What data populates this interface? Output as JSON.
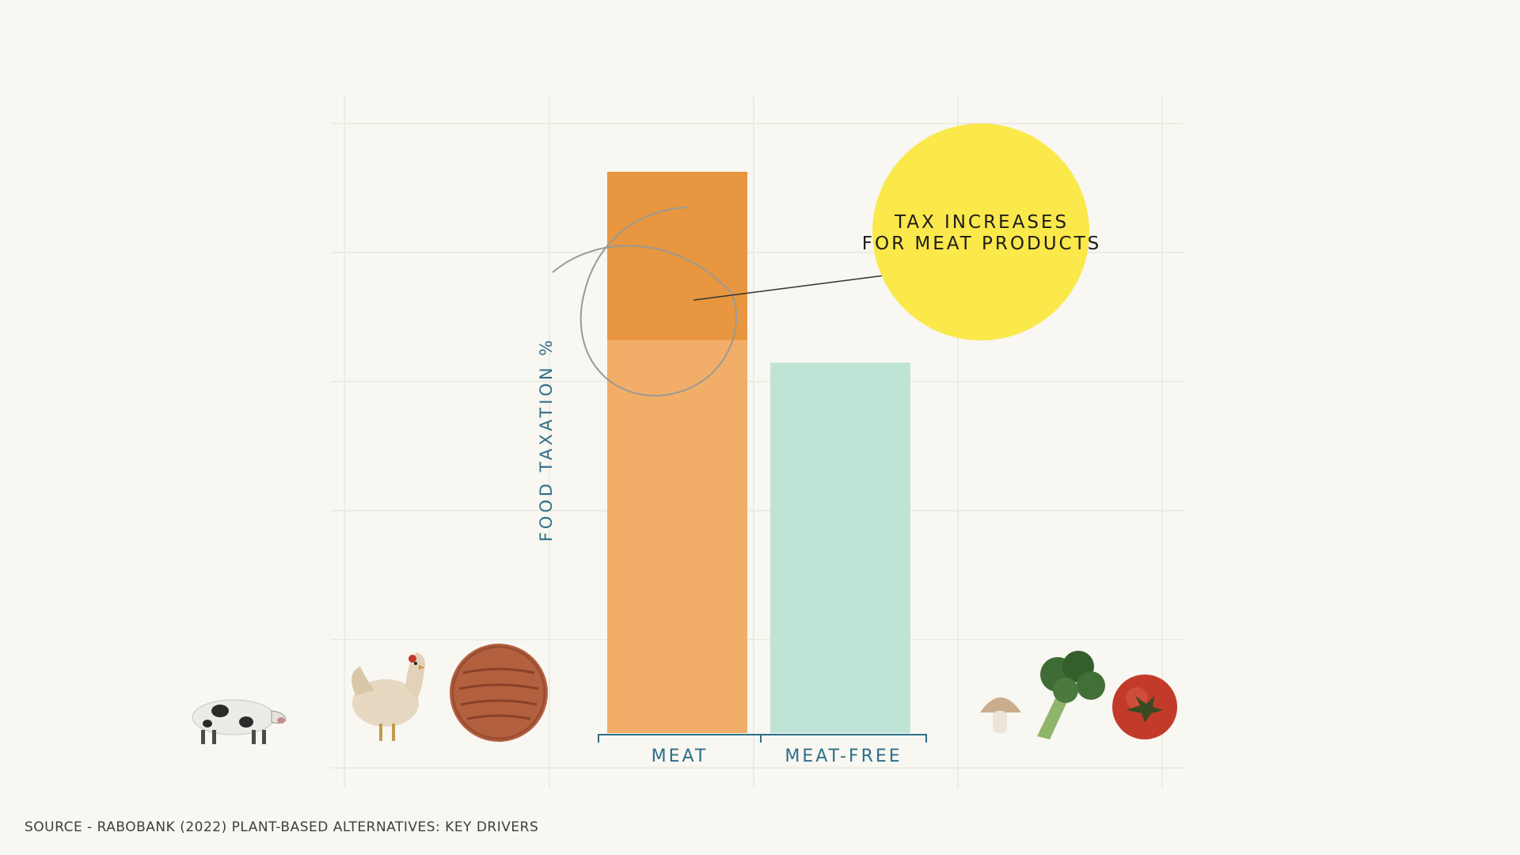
{
  "chart_data": {
    "type": "bar",
    "title": "",
    "ylabel": "FOOD TAXATION %",
    "xlabel": "",
    "categories": [
      "MEAT",
      "MEAT-FREE"
    ],
    "values": [
      100,
      66
    ],
    "baseline_share_meat": 70,
    "colors": {
      "meat": "#f2ae68",
      "meat_increase": "#e8963f",
      "meat_free": "#bfe4d6"
    },
    "grid": true,
    "annotation": {
      "lines": [
        "TAX INCREASES",
        "FOR MEAT PRODUCTS"
      ],
      "highlight_color": "#fbe84a",
      "target": "MEAT"
    }
  },
  "source": "SOURCE - RABOBANK (2022) PLANT-BASED ALTERNATIVES: KEY DRIVERS",
  "icons": {
    "left": [
      "pig-icon",
      "chicken-icon",
      "burger-patty-icon"
    ],
    "right": [
      "mushroom-icon",
      "broccoli-icon",
      "tomato-icon"
    ]
  }
}
